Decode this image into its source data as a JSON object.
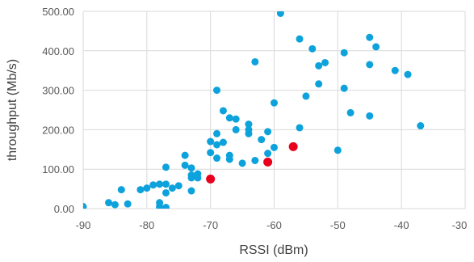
{
  "chart_data": {
    "type": "scatter",
    "title": "",
    "xlabel": "RSSI (dBm)",
    "ylabel": "throughput (Mb/s)",
    "xlim": [
      -90,
      -30
    ],
    "ylim": [
      0,
      500
    ],
    "x_ticks": [
      -90,
      -80,
      -70,
      -60,
      -50,
      -40,
      -30
    ],
    "x_tick_labels": [
      "-90",
      "-80",
      "-70",
      "-60",
      "-50",
      "-40",
      "-30"
    ],
    "y_ticks": [
      0,
      100,
      200,
      300,
      400,
      500
    ],
    "y_tick_labels": [
      "0.00",
      "100.00",
      "200.00",
      "300.00",
      "400.00",
      "500.00"
    ],
    "grid": true,
    "legend": "none",
    "series": [
      {
        "color": "#0da2dc",
        "points": [
          [
            -90,
            5
          ],
          [
            -86,
            15
          ],
          [
            -85,
            10
          ],
          [
            -84,
            48
          ],
          [
            -83,
            12
          ],
          [
            -81,
            48
          ],
          [
            -80,
            52
          ],
          [
            -79,
            60
          ],
          [
            -78,
            62
          ],
          [
            -78,
            15
          ],
          [
            -78,
            5
          ],
          [
            -77,
            3
          ],
          [
            -77,
            62
          ],
          [
            -77,
            105
          ],
          [
            -77,
            40
          ],
          [
            -76,
            52
          ],
          [
            -75,
            58
          ],
          [
            -74,
            135
          ],
          [
            -74,
            110
          ],
          [
            -73,
            103
          ],
          [
            -73,
            85
          ],
          [
            -73,
            78
          ],
          [
            -73,
            45
          ],
          [
            -72,
            78
          ],
          [
            -72,
            88
          ],
          [
            -70,
            142
          ],
          [
            -70,
            170
          ],
          [
            -69,
            128
          ],
          [
            -69,
            162
          ],
          [
            -69,
            190
          ],
          [
            -69,
            300
          ],
          [
            -68,
            248
          ],
          [
            -68,
            168
          ],
          [
            -67,
            230
          ],
          [
            -67,
            135
          ],
          [
            -67,
            125
          ],
          [
            -66,
            227
          ],
          [
            -66,
            200
          ],
          [
            -65,
            115
          ],
          [
            -64,
            214
          ],
          [
            -64,
            200
          ],
          [
            -64,
            190
          ],
          [
            -63,
            372
          ],
          [
            -63,
            122
          ],
          [
            -62,
            175
          ],
          [
            -61,
            195
          ],
          [
            -61,
            140
          ],
          [
            -60,
            268
          ],
          [
            -60,
            155
          ],
          [
            -59,
            495
          ],
          [
            -56,
            430
          ],
          [
            -56,
            205
          ],
          [
            -55,
            285
          ],
          [
            -54,
            405
          ],
          [
            -53,
            362
          ],
          [
            -53,
            316
          ],
          [
            -52,
            370
          ],
          [
            -50,
            148
          ],
          [
            -49,
            395
          ],
          [
            -49,
            305
          ],
          [
            -48,
            243
          ],
          [
            -45,
            434
          ],
          [
            -45,
            365
          ],
          [
            -45,
            235
          ],
          [
            -44,
            410
          ],
          [
            -41,
            350
          ],
          [
            -39,
            340
          ],
          [
            -37,
            210
          ]
        ]
      },
      {
        "color": "#e8001c",
        "points": [
          [
            -70,
            75
          ],
          [
            -61,
            118
          ],
          [
            -57,
            157
          ]
        ]
      }
    ]
  }
}
